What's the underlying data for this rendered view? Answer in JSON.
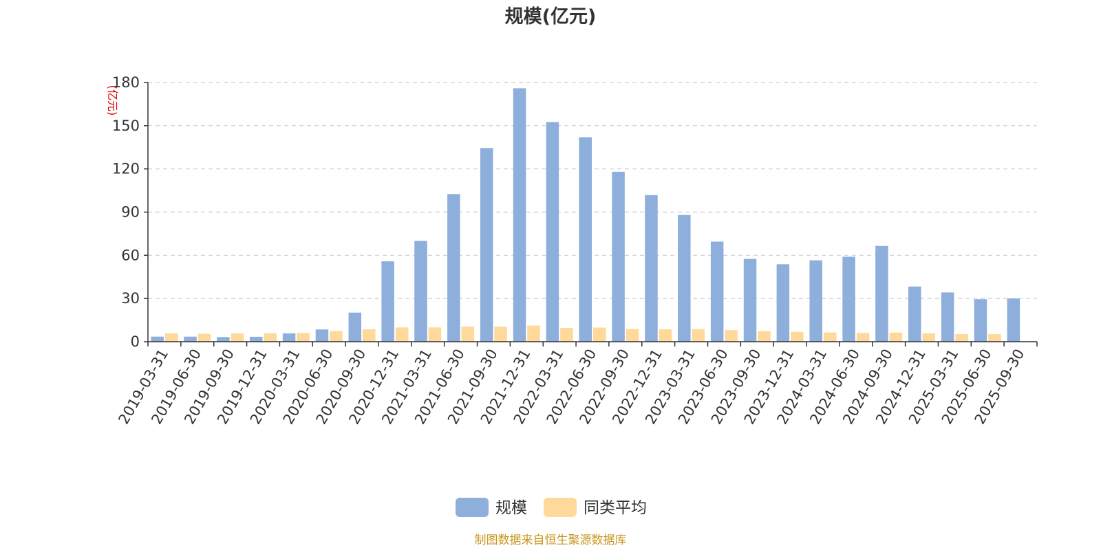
{
  "chart_data": {
    "type": "bar",
    "title": "规模(亿元)",
    "ylabel": "(亿元)",
    "ylim": [
      0,
      180
    ],
    "yticks": [
      0,
      30,
      60,
      90,
      120,
      150,
      180
    ],
    "grid": true,
    "legend_position": "bottom",
    "categories": [
      "2019-03-31",
      "2019-06-30",
      "2019-09-30",
      "2019-12-31",
      "2020-03-31",
      "2020-06-30",
      "2020-09-30",
      "2020-12-31",
      "2021-03-31",
      "2021-06-30",
      "2021-09-30",
      "2021-12-31",
      "2022-03-31",
      "2022-06-30",
      "2022-09-30",
      "2022-12-31",
      "2023-03-31",
      "2023-06-30",
      "2023-09-30",
      "2023-12-31",
      "2024-03-31",
      "2024-06-30",
      "2024-09-30",
      "2024-12-31",
      "2025-03-31",
      "2025-06-30",
      "2025-09-30"
    ],
    "series": [
      {
        "name": "规模",
        "color": "#8eaedb",
        "values": [
          3.5,
          3.5,
          3.2,
          3.4,
          5.8,
          8.5,
          20.2,
          55.8,
          70.0,
          102.5,
          134.5,
          176.0,
          152.5,
          142.0,
          118.0,
          101.8,
          88.0,
          69.5,
          57.5,
          53.8,
          56.5,
          59.0,
          66.5,
          38.3,
          34.2,
          29.5,
          30.0
        ]
      },
      {
        "name": "同类平均",
        "color": "#ffd999",
        "values": [
          5.8,
          5.5,
          5.7,
          5.9,
          6.1,
          7.4,
          8.6,
          9.9,
          9.9,
          10.5,
          10.5,
          11.2,
          9.5,
          9.8,
          8.8,
          8.6,
          8.7,
          8.0,
          7.3,
          6.8,
          6.4,
          6.1,
          6.3,
          5.8,
          5.3,
          5.2,
          null
        ]
      }
    ]
  },
  "footer": {
    "source": "制图数据来自恒生聚源数据库"
  }
}
